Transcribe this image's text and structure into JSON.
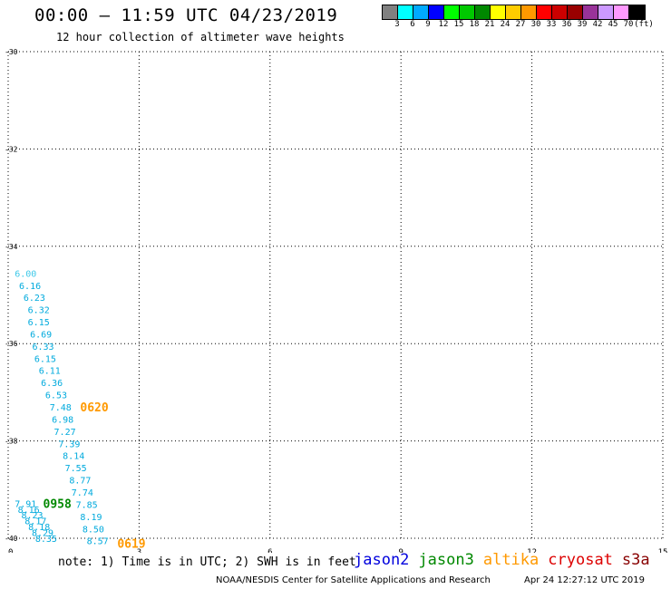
{
  "title": "00:00 — 11:59 UTC 04/23/2019",
  "subtitle": "12 hour collection of altimeter wave heights",
  "legend": {
    "colors": [
      "#808080",
      "#00ffff",
      "#00aaff",
      "#0000ff",
      "#00ff00",
      "#00c800",
      "#008800",
      "#ffff00",
      "#ffcc00",
      "#ff9900",
      "#ff0000",
      "#cc0000",
      "#990000",
      "#993399",
      "#cc99ff",
      "#ff99ff",
      "#000000"
    ],
    "labels": [
      "3",
      "6",
      "9",
      "12",
      "15",
      "18",
      "21",
      "24",
      "27",
      "30",
      "33",
      "36",
      "39",
      "42",
      "45",
      "70",
      "(ft)"
    ]
  },
  "axes": {
    "x_ticks": [
      "0",
      "3",
      "6",
      "9",
      "12",
      "15"
    ],
    "y_ticks": [
      "-30",
      "-32",
      "-34",
      "-36",
      "-38",
      "-40"
    ]
  },
  "map": {
    "lon_range": [
      0,
      15
    ],
    "lat_range": [
      -40,
      -30
    ],
    "swh_points": [
      {
        "lon": 0.15,
        "lat": -34.55,
        "value": "6.00",
        "color": "#3cc8e8"
      },
      {
        "lon": 0.25,
        "lat": -34.8,
        "value": "6.16",
        "color": "#00aadd"
      },
      {
        "lon": 0.35,
        "lat": -35.05,
        "value": "6.23",
        "color": "#00aadd"
      },
      {
        "lon": 0.45,
        "lat": -35.3,
        "value": "6.32",
        "color": "#00aadd"
      },
      {
        "lon": 0.45,
        "lat": -35.55,
        "value": "6.15",
        "color": "#00aadd"
      },
      {
        "lon": 0.5,
        "lat": -35.8,
        "value": "6.69",
        "color": "#00aadd"
      },
      {
        "lon": 0.55,
        "lat": -36.05,
        "value": "6.33",
        "color": "#00aadd"
      },
      {
        "lon": 0.6,
        "lat": -36.3,
        "value": "6.15",
        "color": "#00aadd"
      },
      {
        "lon": 0.7,
        "lat": -36.55,
        "value": "6.11",
        "color": "#00aadd"
      },
      {
        "lon": 0.75,
        "lat": -36.8,
        "value": "6.36",
        "color": "#00aadd"
      },
      {
        "lon": 0.85,
        "lat": -37.05,
        "value": "6.53",
        "color": "#00aadd"
      },
      {
        "lon": 0.95,
        "lat": -37.3,
        "value": "7.48",
        "color": "#00aadd"
      },
      {
        "lon": 1.0,
        "lat": -37.55,
        "value": "6.98",
        "color": "#00aadd"
      },
      {
        "lon": 1.05,
        "lat": -37.8,
        "value": "7.27",
        "color": "#00aadd"
      },
      {
        "lon": 1.15,
        "lat": -38.05,
        "value": "7.39",
        "color": "#00aadd"
      },
      {
        "lon": 1.25,
        "lat": -38.3,
        "value": "8.14",
        "color": "#00aadd"
      },
      {
        "lon": 1.3,
        "lat": -38.55,
        "value": "7.55",
        "color": "#00aadd"
      },
      {
        "lon": 1.4,
        "lat": -38.8,
        "value": "8.77",
        "color": "#00aadd"
      },
      {
        "lon": 1.45,
        "lat": -39.05,
        "value": "7.74",
        "color": "#00aadd"
      },
      {
        "lon": 1.55,
        "lat": -39.3,
        "value": "7.85",
        "color": "#00aadd"
      },
      {
        "lon": 1.65,
        "lat": -39.55,
        "value": "8.19",
        "color": "#00aadd"
      },
      {
        "lon": 1.7,
        "lat": -39.8,
        "value": "8.50",
        "color": "#00aadd"
      },
      {
        "lon": 1.8,
        "lat": -40.05,
        "value": "8.57",
        "color": "#00aadd"
      },
      {
        "lon": 0.15,
        "lat": -39.28,
        "value": "7.91",
        "color": "#00aadd"
      },
      {
        "lon": 0.22,
        "lat": -39.4,
        "value": "8.16",
        "color": "#00aadd"
      },
      {
        "lon": 0.3,
        "lat": -39.52,
        "value": "8.23",
        "color": "#00aadd"
      },
      {
        "lon": 0.38,
        "lat": -39.64,
        "value": "8.17",
        "color": "#00aadd"
      },
      {
        "lon": 0.46,
        "lat": -39.76,
        "value": "8.18",
        "color": "#00aadd"
      },
      {
        "lon": 0.54,
        "lat": -39.88,
        "value": "8.29",
        "color": "#00aadd"
      },
      {
        "lon": 0.62,
        "lat": -40.0,
        "value": "8.35",
        "color": "#00aadd"
      }
    ],
    "pass_labels": [
      {
        "lon": 1.65,
        "lat": -37.3,
        "text": "0620",
        "color": "#ff9900"
      },
      {
        "lon": 0.8,
        "lat": -39.28,
        "text": "0958",
        "color": "#008800"
      },
      {
        "lon": 2.5,
        "lat": -40.1,
        "text": "0619",
        "color": "#ff9900"
      }
    ]
  },
  "note": "note: 1) Time is in UTC; 2) SWH is in feet",
  "satellites": [
    {
      "name": "jason2",
      "color": "#0000dd"
    },
    {
      "name": "jason3",
      "color": "#008800"
    },
    {
      "name": "altika",
      "color": "#ff9900"
    },
    {
      "name": "cryosat",
      "color": "#dd0000"
    },
    {
      "name": "s3a",
      "color": "#880000"
    }
  ],
  "credit": "NOAA/NESDIS Center for Satellite Applications and Research",
  "timestamp": "Apr 24 12:27:12 UTC 2019"
}
